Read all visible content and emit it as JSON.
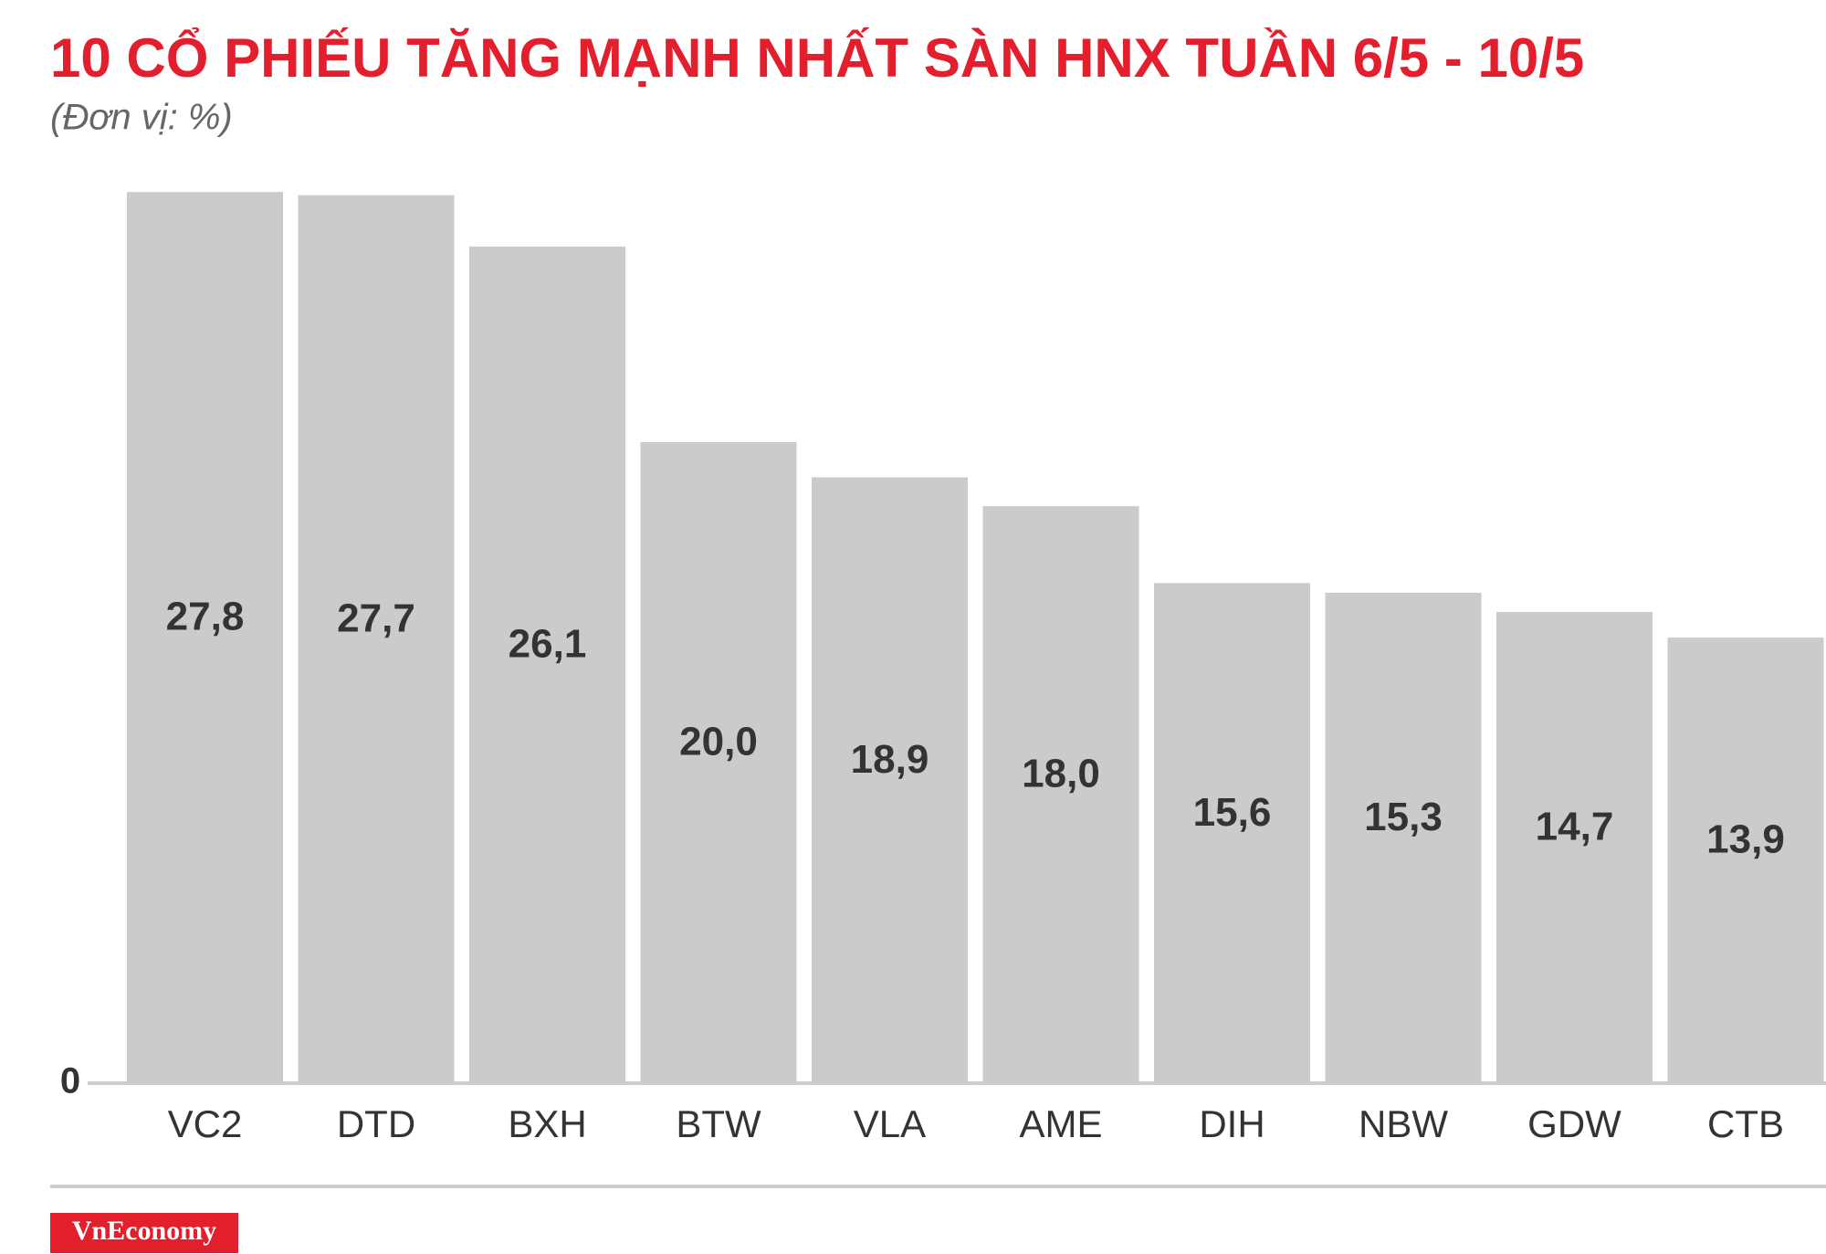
{
  "chart_data": {
    "type": "bar",
    "title": "10 CỔ PHIẾU TĂNG MẠNH NHẤT SÀN HNX TUẦN 6/5 - 10/5",
    "subtitle": "(Đơn vị: %)",
    "categories": [
      "VC2",
      "DTD",
      "BXH",
      "BTW",
      "VLA",
      "AME",
      "DIH",
      "NBW",
      "GDW",
      "CTB"
    ],
    "values": [
      27.8,
      27.7,
      26.1,
      20.0,
      18.9,
      18.0,
      15.6,
      15.3,
      14.7,
      13.9
    ],
    "value_labels": [
      "27,8",
      "27,7",
      "26,1",
      "20,0",
      "18,9",
      "18,0",
      "15,6",
      "15,3",
      "14,7",
      "13,9"
    ],
    "color": "#cccbcb",
    "ylim": [
      0,
      30
    ],
    "yticks": [
      0
    ],
    "grid": false,
    "brand": "VnEconomy"
  }
}
